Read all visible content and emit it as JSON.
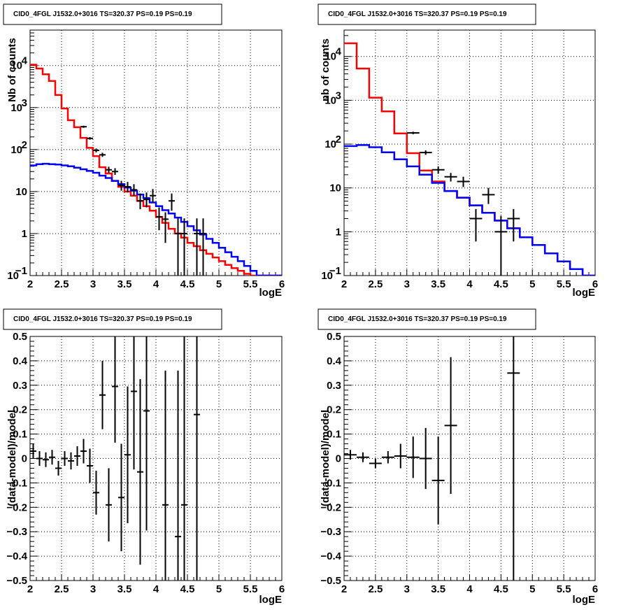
{
  "chart_data": [
    {
      "type": "histogram",
      "title": "CID0_4FGL J1532.0+3016 TS=320.37 PS=0.19 PS=0.19",
      "xlabel": "logE",
      "ylabel": "Nb of counts",
      "xlim": [
        2,
        6
      ],
      "ylim": [
        0.1,
        70000
      ],
      "yscale": "log",
      "grid": true,
      "x_ticks": [
        "2",
        "2.5",
        "3",
        "3.5",
        "4",
        "4.5",
        "5",
        "5.5",
        "6"
      ],
      "y_ticks": [
        {
          "v": 0.1,
          "label": "10",
          "sup": "−1"
        },
        {
          "v": 1,
          "label": "1",
          "sup": ""
        },
        {
          "v": 10,
          "label": "10",
          "sup": ""
        },
        {
          "v": 100,
          "label": "10",
          "sup": "2"
        },
        {
          "v": 1000,
          "label": "10",
          "sup": "3"
        },
        {
          "v": 10000,
          "label": "10",
          "sup": "4"
        }
      ],
      "bin_edges_start": 2.0,
      "bin_width": 0.1,
      "series": [
        {
          "color": "#ff0000",
          "values": [
            10500,
            8500,
            6200,
            4300,
            2000,
            950,
            500,
            340,
            190,
            110,
            70,
            38,
            27,
            18,
            13,
            10,
            8,
            6,
            4.5,
            3.5,
            2.5,
            1.8,
            1.3,
            1.0,
            0.8,
            0.6,
            0.5,
            0.4,
            0.33,
            0.27,
            0.22,
            0.18,
            0.15,
            0.13,
            0.11,
            0.1,
            0.09,
            0.08,
            0.07,
            0.06
          ]
        },
        {
          "color": "#0000ff",
          "values": [
            42,
            45,
            46,
            45,
            44,
            42,
            40,
            37,
            34,
            31,
            28,
            24,
            21,
            18,
            15,
            12.5,
            10.5,
            8.5,
            7,
            5.5,
            4.5,
            3.6,
            3,
            2.4,
            1.9,
            1.5,
            1.2,
            0.95,
            0.75,
            0.6,
            0.46,
            0.36,
            0.28,
            0.22,
            0.17,
            0.13,
            0.1,
            0.1,
            0.1,
            0.1
          ]
        }
      ],
      "points": [
        {
          "x": 2.85,
          "y": 350,
          "ylo": 330,
          "yhi": 370,
          "xerr": 0.05
        },
        {
          "x": 2.95,
          "y": 185,
          "ylo": 172,
          "yhi": 198,
          "xerr": 0.05
        },
        {
          "x": 3.05,
          "y": 96,
          "ylo": 86,
          "yhi": 106,
          "xerr": 0.05
        },
        {
          "x": 3.15,
          "y": 75,
          "ylo": 67,
          "yhi": 84,
          "xerr": 0.05
        },
        {
          "x": 3.25,
          "y": 33,
          "ylo": 28,
          "yhi": 39,
          "xerr": 0.05
        },
        {
          "x": 3.35,
          "y": 30,
          "ylo": 25,
          "yhi": 36,
          "xerr": 0.05
        },
        {
          "x": 3.45,
          "y": 14,
          "ylo": 10.5,
          "yhi": 18,
          "xerr": 0.05
        },
        {
          "x": 3.55,
          "y": 13,
          "ylo": 9.5,
          "yhi": 17,
          "xerr": 0.05
        },
        {
          "x": 3.65,
          "y": 11,
          "ylo": 8,
          "yhi": 15,
          "xerr": 0.05
        },
        {
          "x": 3.75,
          "y": 6,
          "ylo": 3.8,
          "yhi": 9,
          "xerr": 0.05
        },
        {
          "x": 3.85,
          "y": 6.5,
          "ylo": 4.2,
          "yhi": 9.5,
          "xerr": 0.05
        },
        {
          "x": 3.95,
          "y": 8,
          "ylo": 5.5,
          "yhi": 11.5,
          "xerr": 0.05
        },
        {
          "x": 4.05,
          "y": 2.5,
          "ylo": 1.2,
          "yhi": 4.2,
          "xerr": 0.05
        },
        {
          "x": 4.15,
          "y": 2.2,
          "ylo": 0.6,
          "yhi": 3.2,
          "xerr": 0.05
        },
        {
          "x": 4.25,
          "y": 6.0,
          "ylo": 3.5,
          "yhi": 9.0,
          "xerr": 0.05
        },
        {
          "x": 4.35,
          "y": 1.0,
          "ylo": 0.1,
          "yhi": 2.3,
          "xerr": 0.05
        },
        {
          "x": 4.45,
          "y": 1.0,
          "ylo": 0.1,
          "yhi": 2.3,
          "xerr": 0.05
        },
        {
          "x": 4.65,
          "y": 1.0,
          "ylo": 0.1,
          "yhi": 2.3,
          "xerr": 0.05
        },
        {
          "x": 4.75,
          "y": 1.0,
          "ylo": 0.1,
          "yhi": 2.3,
          "xerr": 0.05
        }
      ]
    },
    {
      "type": "histogram",
      "title": "CID0_4FGL J1532.0+3016 TS=320.37 PS=0.19 PS=0.19",
      "xlabel": "logE",
      "ylabel": "nb of counts",
      "xlim": [
        2,
        6
      ],
      "ylim": [
        0.1,
        40000
      ],
      "yscale": "log",
      "grid": true,
      "x_ticks": [
        "2",
        "2.5",
        "3",
        "3.5",
        "4",
        "4.5",
        "5",
        "5.5",
        "6"
      ],
      "y_ticks": [
        {
          "v": 0.1,
          "label": "10",
          "sup": "−1"
        },
        {
          "v": 1,
          "label": "1",
          "sup": ""
        },
        {
          "v": 10,
          "label": "10",
          "sup": ""
        },
        {
          "v": 100,
          "label": "10",
          "sup": "2"
        },
        {
          "v": 1000,
          "label": "10",
          "sup": "3"
        },
        {
          "v": 10000,
          "label": "10",
          "sup": "4"
        }
      ],
      "bin_edges_start": 2.0,
      "bin_width": 0.2,
      "series": [
        {
          "color": "#ff0000",
          "values": [
            20000,
            5300,
            1150,
            560,
            175,
            62,
            25,
            14,
            8.5,
            6,
            4,
            2.7,
            1.8,
            1.2,
            0.75,
            0.5,
            0.32,
            0.21,
            0.14,
            0.1
          ]
        },
        {
          "color": "#0000ff",
          "values": [
            90,
            95,
            85,
            65,
            45,
            31,
            20,
            13,
            8.5,
            6,
            4,
            2.7,
            1.8,
            1.2,
            0.75,
            0.5,
            0.32,
            0.21,
            0.14,
            0.1
          ]
        }
      ],
      "points": [
        {
          "x": 3.1,
          "y": 180,
          "ylo": 168,
          "yhi": 192,
          "xerr": 0.1
        },
        {
          "x": 3.3,
          "y": 64,
          "ylo": 57,
          "yhi": 72,
          "xerr": 0.1
        },
        {
          "x": 3.5,
          "y": 26,
          "ylo": 21,
          "yhi": 31,
          "xerr": 0.1
        },
        {
          "x": 3.7,
          "y": 18,
          "ylo": 14,
          "yhi": 22,
          "xerr": 0.1
        },
        {
          "x": 3.9,
          "y": 14,
          "ylo": 10.5,
          "yhi": 18,
          "xerr": 0.1
        },
        {
          "x": 4.1,
          "y": 2.0,
          "ylo": 0.6,
          "yhi": 3.3,
          "xerr": 0.1
        },
        {
          "x": 4.3,
          "y": 7.0,
          "ylo": 4.3,
          "yhi": 10,
          "xerr": 0.1
        },
        {
          "x": 4.5,
          "y": 1.0,
          "ylo": 0.1,
          "yhi": 2.3,
          "xerr": 0.1
        },
        {
          "x": 4.7,
          "y": 2.0,
          "ylo": 0.6,
          "yhi": 3.3,
          "xerr": 0.1
        }
      ]
    },
    {
      "type": "scatter",
      "title": "CID0_4FGL J1532.0+3016 TS=320.37 PS=0.19 PS=0.19",
      "xlabel": "logE",
      "ylabel": "(data-model)/model",
      "xlim": [
        2,
        6
      ],
      "ylim": [
        -0.5,
        0.5
      ],
      "yscale": "linear",
      "grid": true,
      "x_ticks": [
        "2",
        "2.5",
        "3",
        "3.5",
        "4",
        "4.5",
        "5",
        "5.5",
        "6"
      ],
      "y_ticks": [
        "−0.5",
        "−0.4",
        "−0.3",
        "−0.2",
        "−0.1",
        "0",
        "0.1",
        "0.2",
        "0.3",
        "0.4",
        "0.5"
      ],
      "points": [
        {
          "x": 2.05,
          "y": 0.03,
          "err": 0.03,
          "xerr": 0.05
        },
        {
          "x": 2.15,
          "y": 0.0,
          "err": 0.03,
          "xerr": 0.05
        },
        {
          "x": 2.25,
          "y": -0.005,
          "err": 0.03,
          "xerr": 0.05
        },
        {
          "x": 2.35,
          "y": 0.005,
          "err": 0.03,
          "xerr": 0.05
        },
        {
          "x": 2.45,
          "y": -0.04,
          "err": 0.03,
          "xerr": 0.05
        },
        {
          "x": 2.55,
          "y": 0.0,
          "err": 0.03,
          "xerr": 0.05
        },
        {
          "x": 2.65,
          "y": -0.01,
          "err": 0.035,
          "xerr": 0.05
        },
        {
          "x": 2.75,
          "y": 0.01,
          "err": 0.04,
          "xerr": 0.05
        },
        {
          "x": 2.85,
          "y": 0.03,
          "err": 0.05,
          "xerr": 0.05
        },
        {
          "x": 2.95,
          "y": -0.03,
          "err": 0.07,
          "xerr": 0.05
        },
        {
          "x": 3.05,
          "y": -0.14,
          "err": 0.09,
          "xerr": 0.05
        },
        {
          "x": 3.15,
          "y": 0.26,
          "err": 0.14,
          "xerr": 0.05
        },
        {
          "x": 3.25,
          "y": -0.19,
          "err": 0.15,
          "xerr": 0.05
        },
        {
          "x": 3.35,
          "y": 0.295,
          "err": 0.23,
          "xerr": 0.05
        },
        {
          "x": 3.45,
          "y": -0.16,
          "err": 0.22,
          "xerr": 0.05
        },
        {
          "x": 3.55,
          "y": 0.015,
          "err": 0.28,
          "xerr": 0.05
        },
        {
          "x": 3.65,
          "y": 0.275,
          "err": 0.32,
          "xerr": 0.05
        },
        {
          "x": 3.75,
          "y": -0.055,
          "err": 0.38,
          "xerr": 0.05
        },
        {
          "x": 3.85,
          "y": 0.195,
          "err": 0.49,
          "xerr": 0.05
        },
        {
          "x": 4.15,
          "y": -0.19,
          "err": 0.55,
          "xerr": 0.05
        },
        {
          "x": 4.35,
          "y": -0.32,
          "err": 0.68,
          "xerr": 0.05
        },
        {
          "x": 4.45,
          "y": -0.19,
          "err": 0.9,
          "xerr": 0.05
        },
        {
          "x": 4.65,
          "y": 0.18,
          "err": 1.0,
          "xerr": 0.05
        }
      ]
    },
    {
      "type": "scatter",
      "title": "CID0_4FGL J1532.0+3016 TS=320.37 PS=0.19 PS=0.19",
      "xlabel": "logE",
      "ylabel": "(data-model)/model",
      "xlim": [
        2,
        6
      ],
      "ylim": [
        -0.5,
        0.5
      ],
      "yscale": "linear",
      "grid": true,
      "x_ticks": [
        "2",
        "2.5",
        "3",
        "3.5",
        "4",
        "4.5",
        "5",
        "5.5",
        "6"
      ],
      "y_ticks": [
        "−0.5",
        "−0.4",
        "−0.3",
        "−0.2",
        "−0.1",
        "0",
        "0.1",
        "0.2",
        "0.3",
        "0.4",
        "0.5"
      ],
      "points": [
        {
          "x": 2.1,
          "y": 0.015,
          "err": 0.02,
          "xerr": 0.1
        },
        {
          "x": 2.3,
          "y": 0.005,
          "err": 0.02,
          "xerr": 0.1
        },
        {
          "x": 2.5,
          "y": -0.02,
          "err": 0.02,
          "xerr": 0.1
        },
        {
          "x": 2.7,
          "y": 0.005,
          "err": 0.025,
          "xerr": 0.1
        },
        {
          "x": 2.9,
          "y": 0.01,
          "err": 0.05,
          "xerr": 0.1
        },
        {
          "x": 3.1,
          "y": 0.005,
          "err": 0.085,
          "xerr": 0.1
        },
        {
          "x": 3.3,
          "y": 0.0,
          "err": 0.125,
          "xerr": 0.1
        },
        {
          "x": 3.5,
          "y": -0.09,
          "err": 0.18,
          "xerr": 0.1
        },
        {
          "x": 3.7,
          "y": 0.135,
          "err": 0.28,
          "xerr": 0.1
        },
        {
          "x": 4.7,
          "y": 0.35,
          "err": 1.0,
          "xerr": 0.1
        }
      ]
    }
  ]
}
